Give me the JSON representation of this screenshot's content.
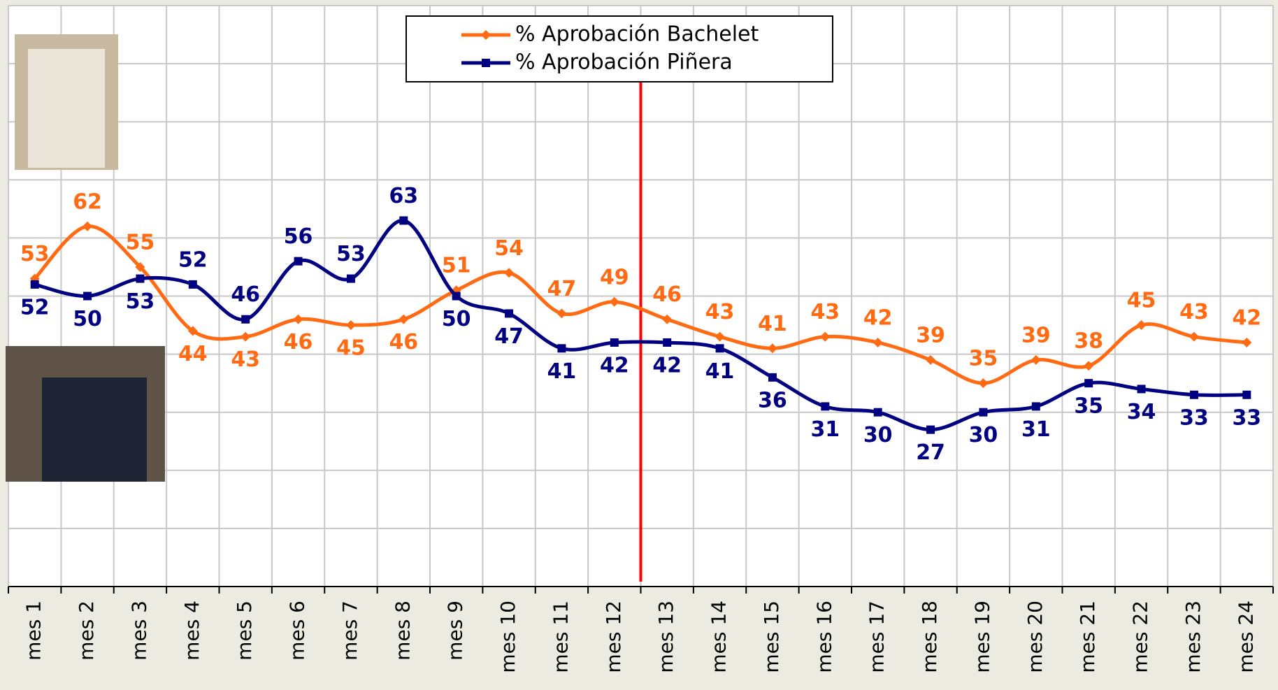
{
  "chart_data": {
    "type": "line",
    "categories": [
      "mes 1",
      "mes 2",
      "mes 3",
      "mes 4",
      "mes 5",
      "mes 6",
      "mes 7",
      "mes 8",
      "mes 9",
      "mes 10",
      "mes 11",
      "mes 12",
      "mes 13",
      "mes 14",
      "mes 15",
      "mes 16",
      "mes 17",
      "mes 18",
      "mes 19",
      "mes 20",
      "mes 21",
      "mes 22",
      "mes 23",
      "mes 24"
    ],
    "series": [
      {
        "name": "% Aprobación Bachelet",
        "color": "#ff6a13",
        "values": [
          53,
          62,
          55,
          44,
          43,
          46,
          45,
          46,
          51,
          54,
          47,
          49,
          46,
          43,
          41,
          43,
          42,
          39,
          35,
          39,
          38,
          45,
          43,
          42
        ]
      },
      {
        "name": "% Aprobación Piñera",
        "color": "#000080",
        "values": [
          52,
          50,
          53,
          52,
          46,
          56,
          53,
          63,
          50,
          47,
          41,
          42,
          42,
          41,
          36,
          31,
          30,
          27,
          30,
          31,
          35,
          34,
          33,
          33
        ]
      }
    ],
    "ylim": [
      0,
      100
    ],
    "yticks": [
      0,
      10,
      20,
      30,
      40,
      50,
      60,
      70,
      80,
      90,
      100
    ],
    "grid": true
  }
}
